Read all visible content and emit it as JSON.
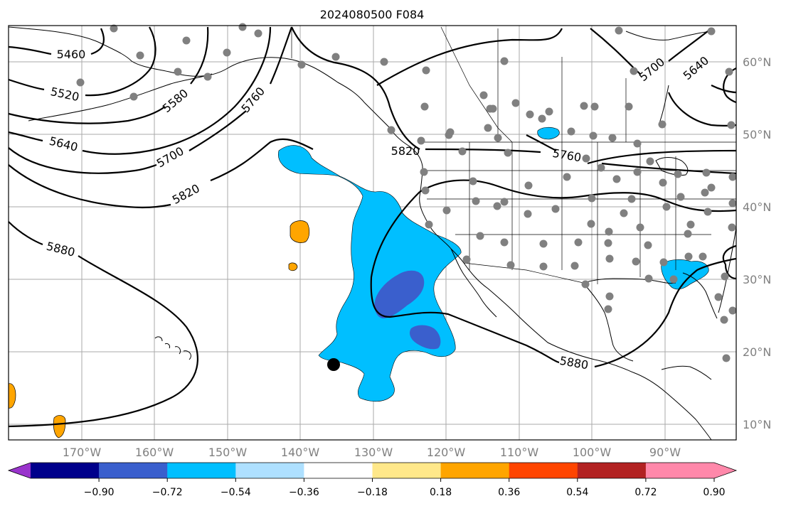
{
  "title": "2024080500 F084",
  "map": {
    "lat_labels": [
      "60°N",
      "50°N",
      "40°N",
      "30°N",
      "20°N",
      "10°N"
    ],
    "lon_labels": [
      "170°W",
      "160°W",
      "150°W",
      "140°W",
      "130°W",
      "120°W",
      "110°W",
      "100°W",
      "90°W"
    ],
    "contour_labels": [
      "5460",
      "5520",
      "5580",
      "5640",
      "5700",
      "5760",
      "5820",
      "5880",
      "5820",
      "5760",
      "5700",
      "5640",
      "5880"
    ]
  },
  "colorbar": {
    "ticks": [
      "−0.90",
      "−0.72",
      "−0.54",
      "−0.36",
      "−0.18",
      "0.18",
      "0.36",
      "0.54",
      "0.72",
      "0.90"
    ],
    "colors": {
      "under": "#9933cc",
      "bins": [
        "#00008b",
        "#3a5fcd",
        "#00bfff",
        "#aee0ff",
        "#ffffff",
        "#ffe88a",
        "#ffa500",
        "#ff4500",
        "#b22222",
        "#ff88aa"
      ],
      "over": "#ff88aa"
    }
  },
  "colors": {
    "blue_light": "#00bfff",
    "blue_mid": "#3a5fcd",
    "orange": "#ffa500",
    "station": "#808080"
  }
}
